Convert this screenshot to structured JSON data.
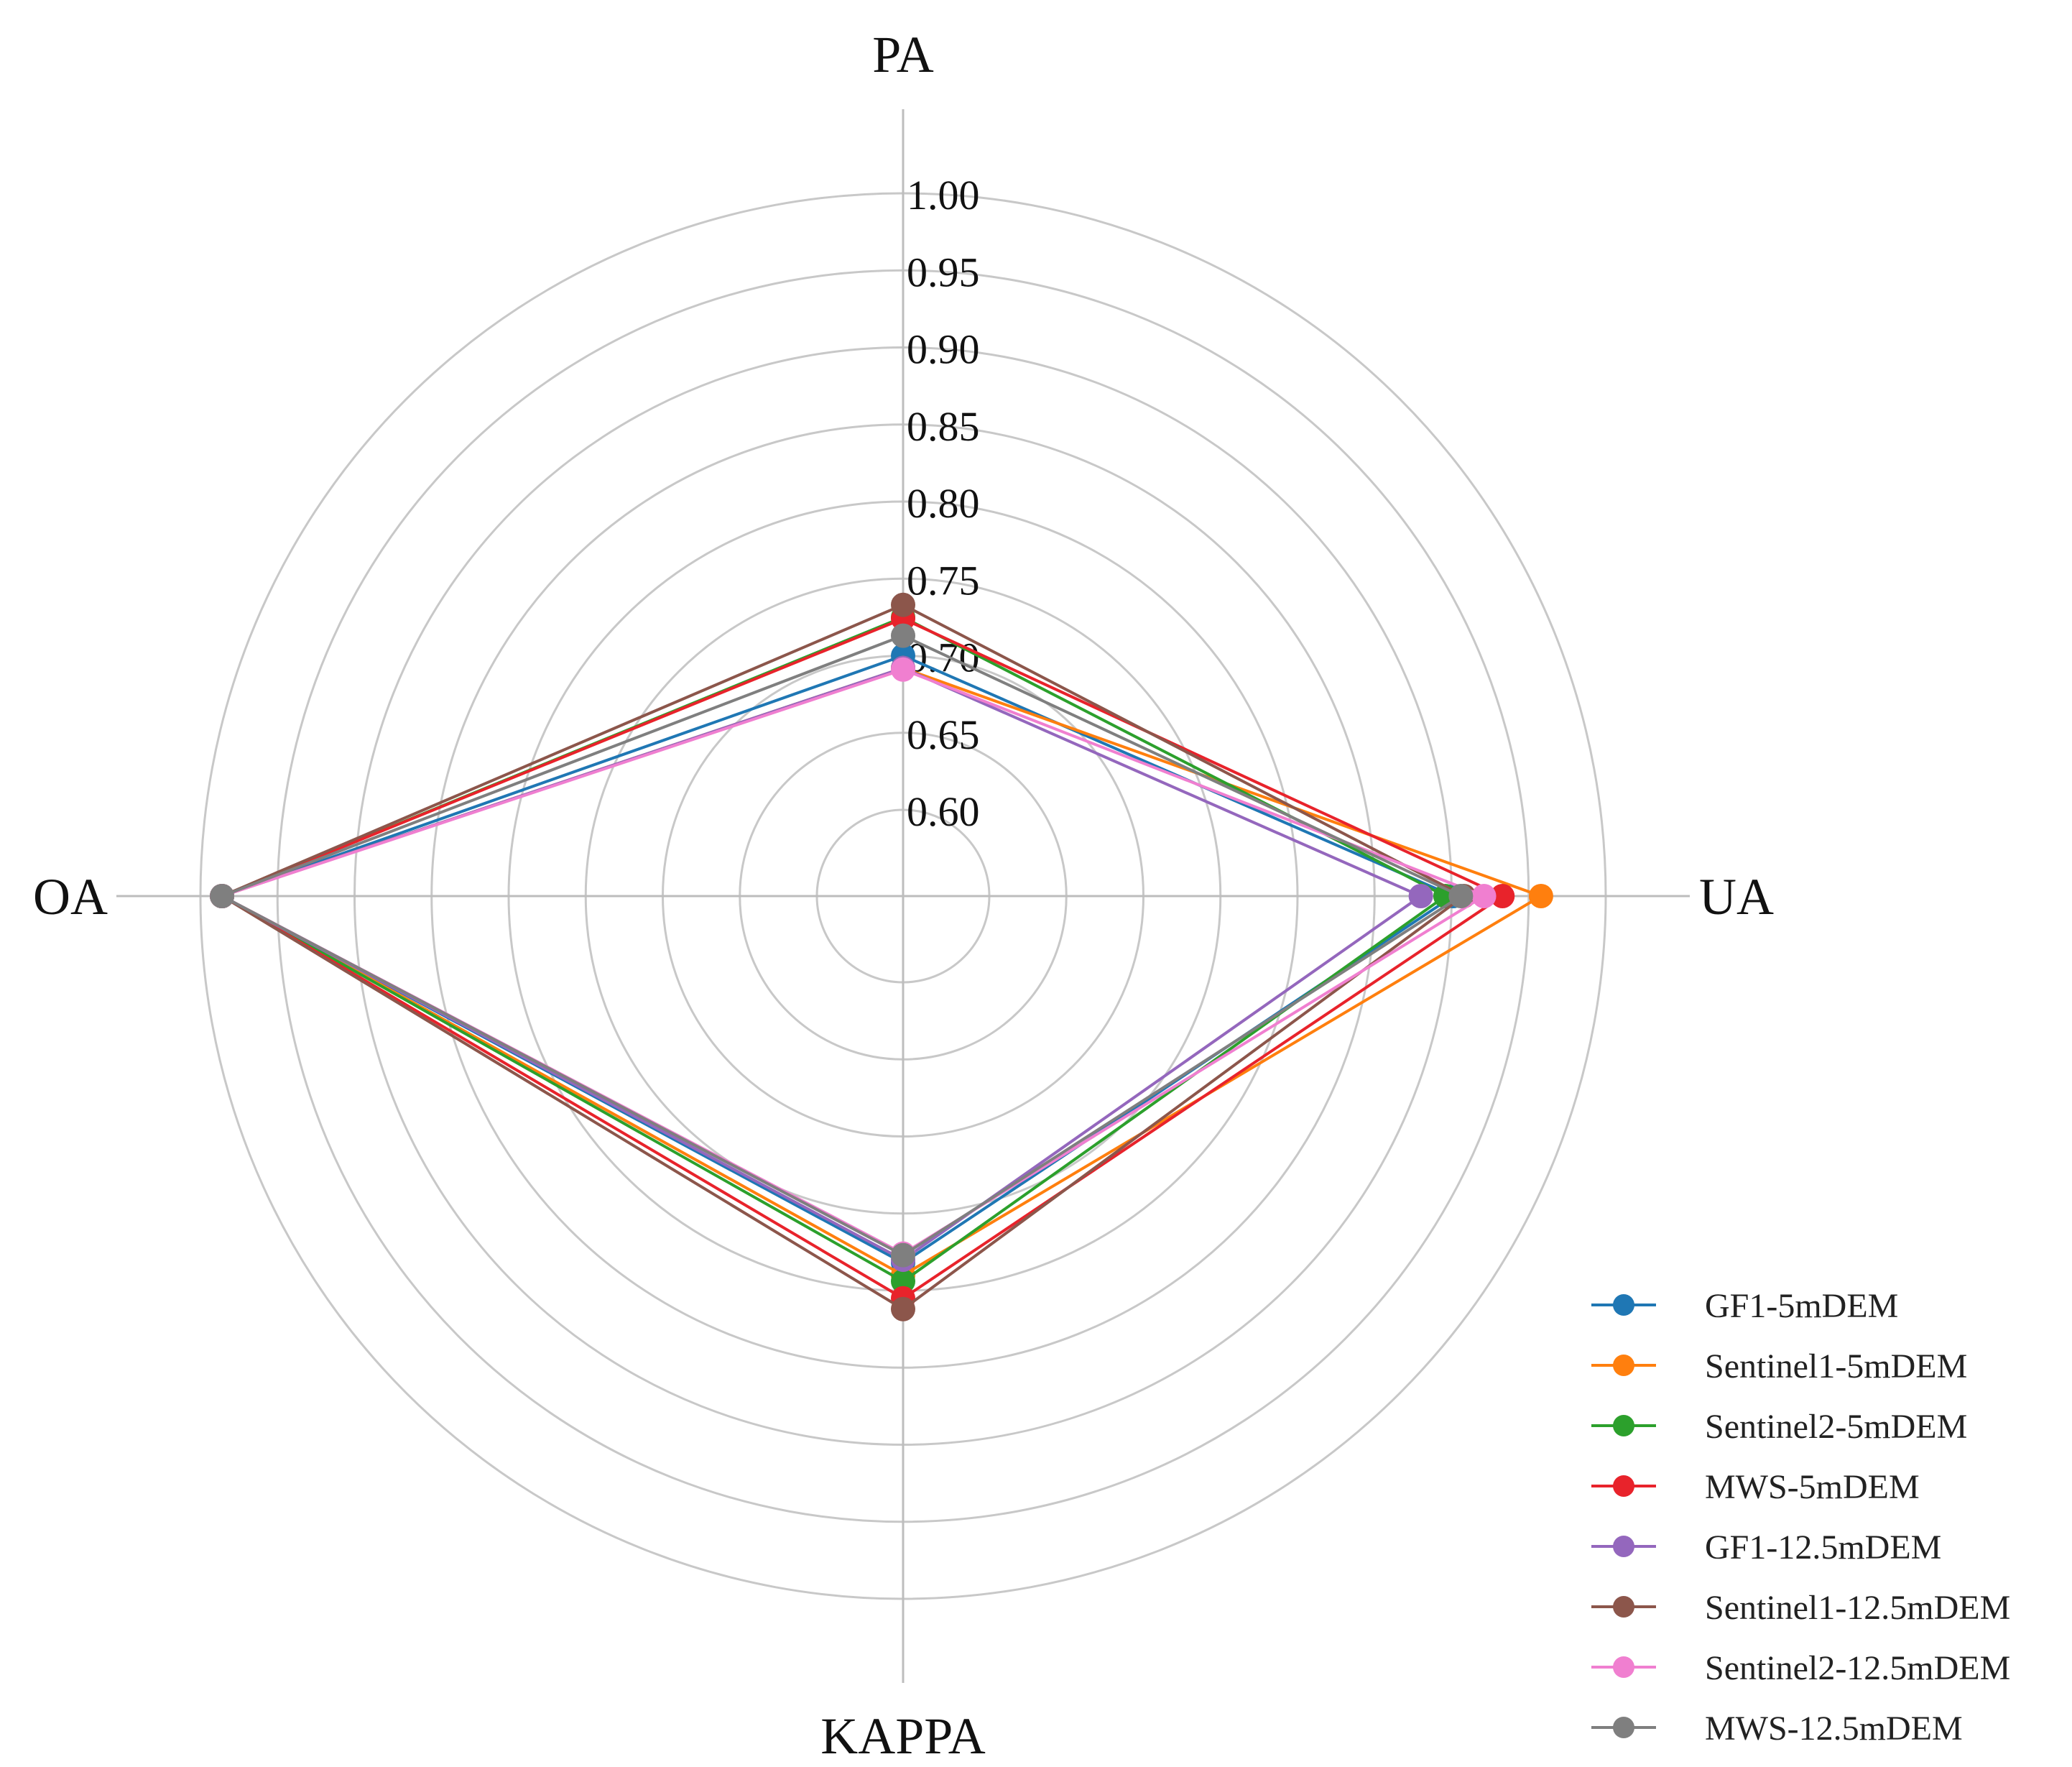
{
  "chart_data": {
    "type": "radar",
    "axes": [
      "PA",
      "UA",
      "KAPPA",
      "OA"
    ],
    "radial_range": [
      0.6,
      1.0
    ],
    "radial_ticks": [
      "0.60",
      "0.65",
      "0.70",
      "0.75",
      "0.80",
      "0.85",
      "0.90",
      "0.95",
      "1.00"
    ],
    "legend_position": "bottom-right",
    "series": [
      {
        "name": "GF1-5mDEM",
        "color": "#1f77b4",
        "values": [
          0.7,
          0.901,
          0.782,
          0.986
        ]
      },
      {
        "name": "Sentinel1-5mDEM",
        "color": "#ff7f0e",
        "values": [
          0.692,
          0.958,
          0.79,
          0.986
        ]
      },
      {
        "name": "Sentinel2-5mDEM",
        "color": "#2ca02c",
        "values": [
          0.725,
          0.896,
          0.794,
          0.986
        ]
      },
      {
        "name": "MWS-5mDEM",
        "color": "#e8232b",
        "values": [
          0.724,
          0.933,
          0.805,
          0.986
        ]
      },
      {
        "name": "GF1-12.5mDEM",
        "color": "#9467bd",
        "values": [
          0.692,
          0.88,
          0.78,
          0.986
        ]
      },
      {
        "name": "Sentinel1-12.5mDEM",
        "color": "#8c564b",
        "values": [
          0.733,
          0.908,
          0.812,
          0.986
        ]
      },
      {
        "name": "Sentinel2-12.5mDEM",
        "color": "#f07fd0",
        "values": [
          0.691,
          0.921,
          0.776,
          0.986
        ]
      },
      {
        "name": "MWS-12.5mDEM",
        "color": "#7f7f7f",
        "values": [
          0.713,
          0.906,
          0.777,
          0.986
        ]
      }
    ]
  }
}
